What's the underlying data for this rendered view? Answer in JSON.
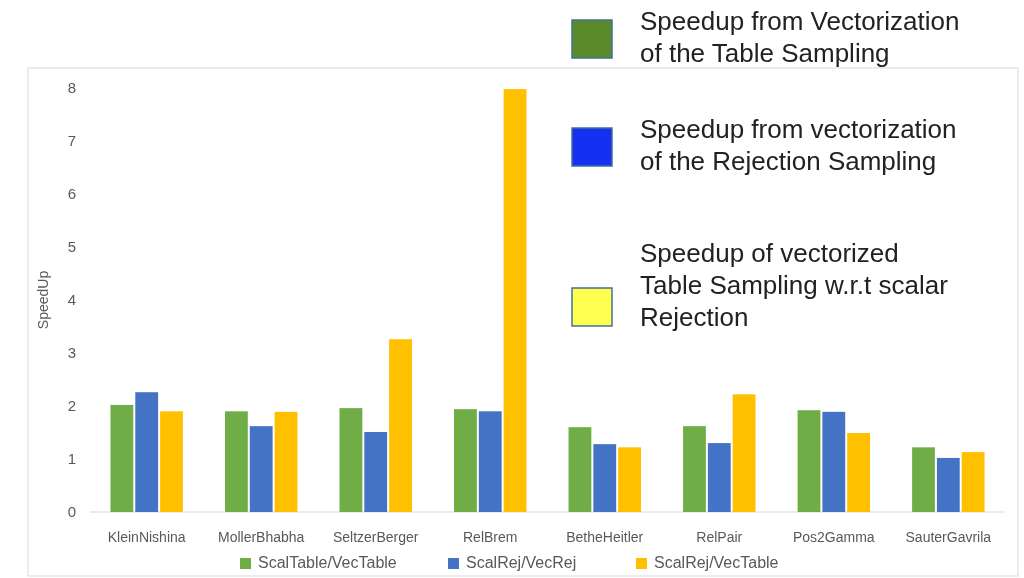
{
  "chart_data": {
    "type": "bar",
    "ylabel": "SpeedUp",
    "categories": [
      "KleinNishina",
      "MollerBhabha",
      "SeltzerBerger",
      "RelBrem",
      "BetheHeitler",
      "RelPair",
      "Pos2Gamma",
      "SauterGavrila"
    ],
    "series": [
      {
        "name": "ScalTable/VecTable",
        "color": "#70ad47",
        "values": [
          2.02,
          1.9,
          1.96,
          1.94,
          1.6,
          1.62,
          1.92,
          1.22
        ]
      },
      {
        "name": "ScalRej/VecRej",
        "color": "#4472c4",
        "values": [
          2.26,
          1.62,
          1.51,
          1.9,
          1.28,
          1.3,
          1.89,
          1.02
        ]
      },
      {
        "name": "ScalRej/VecTable",
        "color": "#ffc000",
        "values": [
          1.9,
          1.89,
          3.26,
          7.98,
          1.22,
          2.22,
          1.49,
          1.13
        ]
      }
    ],
    "ylim": [
      0,
      8
    ],
    "yticks": [
      0,
      1,
      2,
      3,
      4,
      5,
      6,
      7,
      8
    ],
    "grid": false,
    "legend": "bottom",
    "annotations": [
      "Speedup from Vectorization\nof the Table Sampling",
      "Speedup from vectorization\nof the Rejection Sampling",
      "Speedup of vectorized\nTable Sampling w.r.t scalar\nRejection"
    ]
  }
}
